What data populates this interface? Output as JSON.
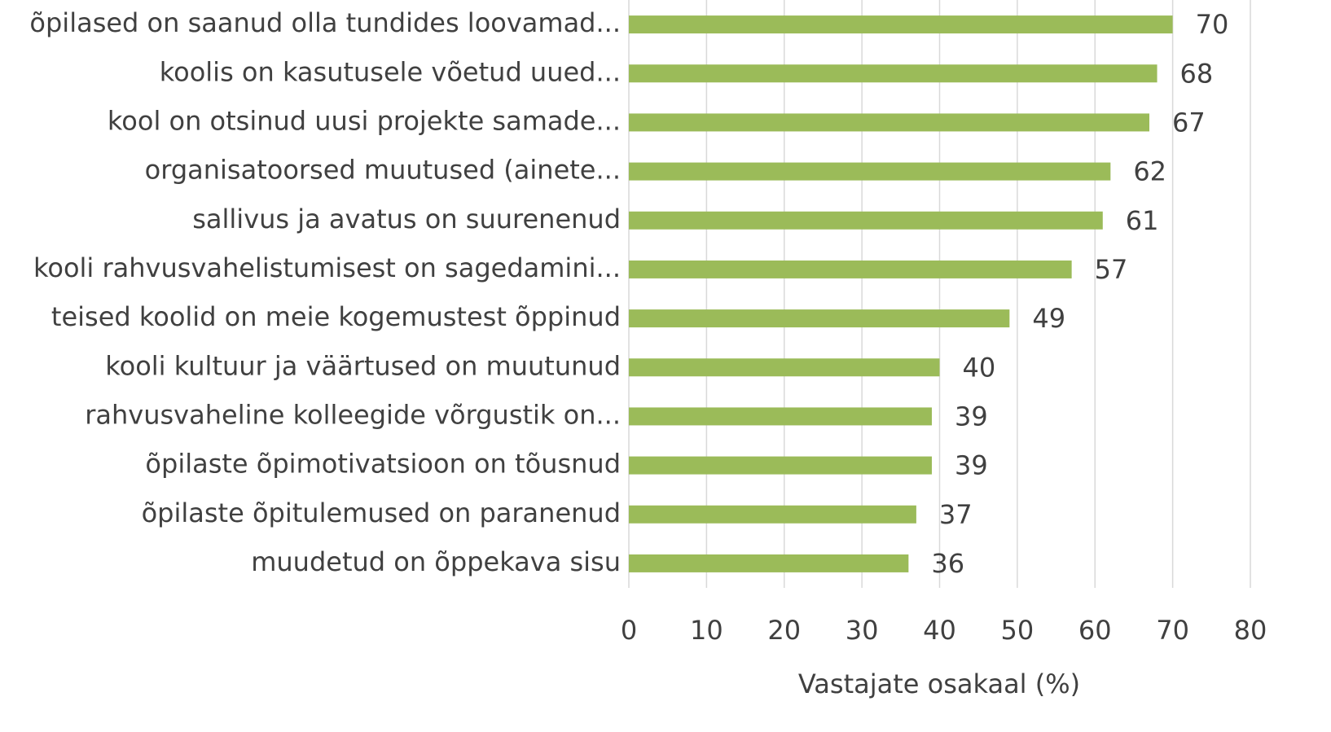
{
  "chart_data": {
    "type": "bar",
    "orientation": "horizontal",
    "x_label": "Vastajate osakaal (%)",
    "categories": [
      "õpilased on saanud olla tundides loovamad...",
      "koolis on kasutusele võetud uued...",
      "kool on otsinud uusi projekte samade...",
      "organisatoorsed muutused (ainete...",
      "sallivus ja avatus on suurenenud",
      "kooli rahvusvahelistumisest on sagedamini...",
      "teised koolid on meie kogemustest õppinud",
      "kooli kultuur ja väärtused on muutunud",
      "rahvusvaheline kolleegide võrgustik on...",
      "õpilaste õpimotivatsioon on tõusnud",
      "õpilaste õpitulemused on paranenud",
      "muudetud on õppekava sisu"
    ],
    "values": [
      70,
      68,
      67,
      62,
      61,
      57,
      49,
      40,
      39,
      39,
      37,
      36
    ],
    "color": "#9bbb59",
    "xlim": [
      0,
      80
    ],
    "xticks": [
      0,
      10,
      20,
      30,
      40,
      50,
      60,
      70,
      80
    ],
    "grid": true
  }
}
